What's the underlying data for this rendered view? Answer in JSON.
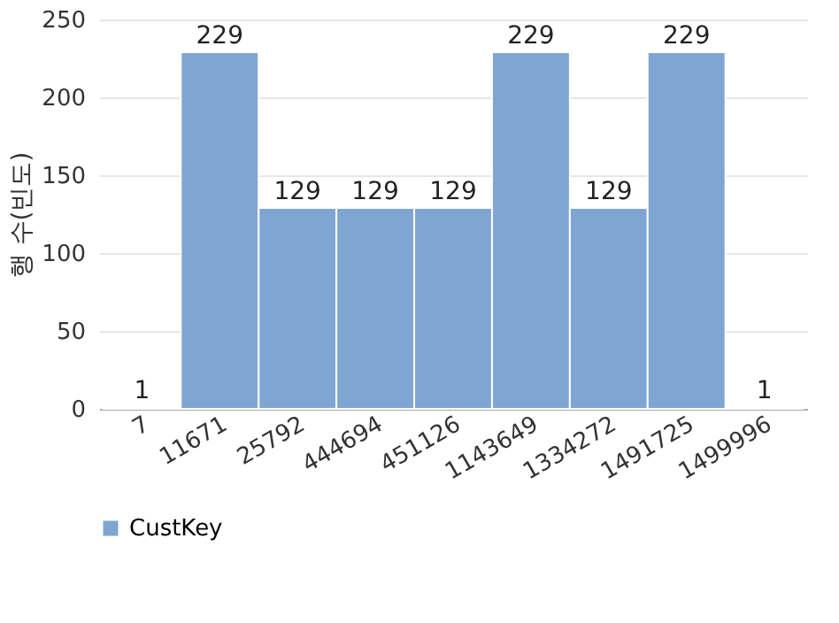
{
  "chart_data": {
    "type": "bar",
    "ylabel": "행 수(빈도)",
    "categories": [
      "7",
      "11671",
      "25792",
      "444694",
      "451126",
      "1143649",
      "1334272",
      "1491725",
      "1499996"
    ],
    "series": [
      {
        "name": "CustKey",
        "color": "#7fa6d3",
        "values": [
          1,
          229,
          129,
          129,
          129,
          229,
          129,
          229,
          1
        ]
      }
    ],
    "ylim": [
      0,
      250
    ],
    "yticks": [
      0,
      50,
      100,
      150,
      200,
      250
    ],
    "grid": "y",
    "legend": "bottom",
    "data_labels": true
  }
}
